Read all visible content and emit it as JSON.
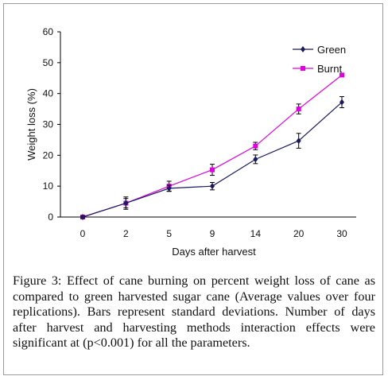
{
  "chart_data": {
    "type": "line",
    "title": "",
    "xlabel": "Days after harvest",
    "ylabel": "Weight loss (%)",
    "categories": [
      "0",
      "2",
      "5",
      "9",
      "14",
      "20",
      "30"
    ],
    "ylim": [
      0,
      60
    ],
    "yticks": [
      0,
      10,
      20,
      30,
      40,
      50,
      60
    ],
    "grid": false,
    "legend_position": "top-right",
    "series": [
      {
        "name": "Green",
        "color": "#1a1a5e",
        "marker": "diamond",
        "values": [
          0,
          4.5,
          9.3,
          10.0,
          18.7,
          24.7,
          37.2
        ],
        "errors": [
          0.3,
          2.0,
          1.0,
          1.2,
          1.4,
          2.4,
          1.8
        ]
      },
      {
        "name": "Burnt",
        "color": "#e000e0",
        "marker": "square",
        "values": [
          0,
          4.5,
          10.0,
          15.3,
          23.0,
          35.0,
          46.0
        ],
        "errors": [
          0.3,
          1.5,
          1.6,
          1.8,
          1.2,
          1.6,
          0
        ]
      }
    ]
  },
  "caption": {
    "label": "Figure 3:",
    "text": " Effect of cane burning on percent weight loss of cane as compared to green harvested sugar cane (Average values over four replications). Bars represent standard deviations. Number of days after harvest and harvesting methods interaction effects were significant at (p<0.001) for all the parameters."
  }
}
